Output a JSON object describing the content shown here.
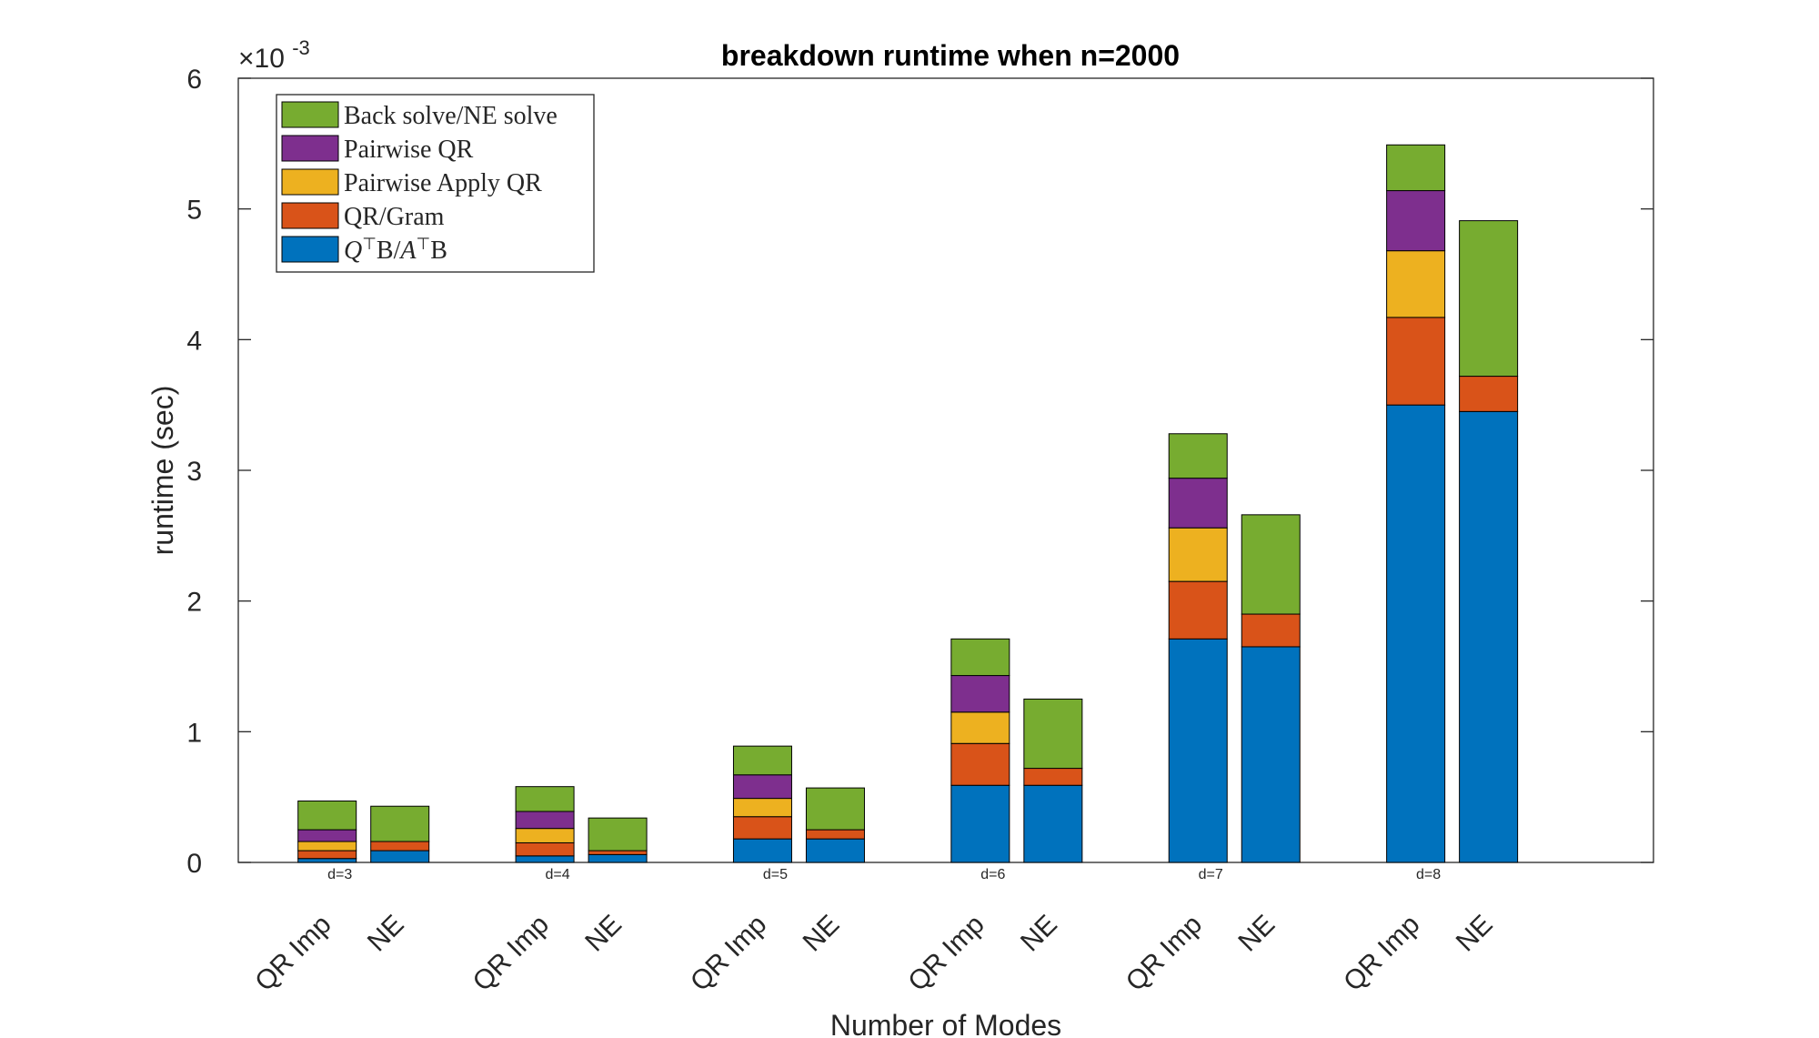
{
  "chart_data": {
    "type": "bar",
    "stacked": true,
    "title": "breakdown runtime when n=2000",
    "xlabel": "Number of Modes",
    "ylabel": "runtime (sec)",
    "y_exponent_label": "×10",
    "y_exponent_power": "-3",
    "ylim": [
      0,
      6
    ],
    "yticks": [
      "0",
      "1",
      "2",
      "3",
      "4",
      "5",
      "6"
    ],
    "grid": false,
    "legend_position": "top-left",
    "group_labels": [
      "d=3",
      "d=4",
      "d=5",
      "d=6",
      "d=7",
      "d=8"
    ],
    "bar_labels": [
      "QR Imp",
      "NE"
    ],
    "components": [
      {
        "name": "Q⊤B/A⊤B",
        "name_parts": [
          "Q",
          "⊤",
          "B/",
          "A",
          "⊤",
          "B"
        ],
        "color": "#0072BD"
      },
      {
        "name": "QR/Gram",
        "color": "#D95319"
      },
      {
        "name": "Pairwise Apply QR",
        "color": "#EDB120"
      },
      {
        "name": "Pairwise QR",
        "color": "#7E2F8E"
      },
      {
        "name": "Back solve/NE solve",
        "color": "#77AC30"
      }
    ],
    "groups": [
      {
        "label": "d=3",
        "bars": [
          {
            "label": "QR Imp",
            "values": [
              0.03,
              0.06,
              0.07,
              0.09,
              0.22
            ]
          },
          {
            "label": "NE",
            "values": [
              0.09,
              0.07,
              0.0,
              0.0,
              0.27
            ]
          }
        ]
      },
      {
        "label": "d=4",
        "bars": [
          {
            "label": "QR Imp",
            "values": [
              0.05,
              0.1,
              0.11,
              0.13,
              0.19
            ]
          },
          {
            "label": "NE",
            "values": [
              0.06,
              0.03,
              0.0,
              0.0,
              0.25
            ]
          }
        ]
      },
      {
        "label": "d=5",
        "bars": [
          {
            "label": "QR Imp",
            "values": [
              0.18,
              0.17,
              0.14,
              0.18,
              0.22
            ]
          },
          {
            "label": "NE",
            "values": [
              0.18,
              0.07,
              0.0,
              0.0,
              0.32
            ]
          }
        ]
      },
      {
        "label": "d=6",
        "bars": [
          {
            "label": "QR Imp",
            "values": [
              0.59,
              0.32,
              0.24,
              0.28,
              0.28
            ]
          },
          {
            "label": "NE",
            "values": [
              0.59,
              0.13,
              0.0,
              0.0,
              0.53
            ]
          }
        ]
      },
      {
        "label": "d=7",
        "bars": [
          {
            "label": "QR Imp",
            "values": [
              1.71,
              0.44,
              0.41,
              0.38,
              0.34
            ]
          },
          {
            "label": "NE",
            "values": [
              1.65,
              0.25,
              0.0,
              0.0,
              0.76
            ]
          }
        ]
      },
      {
        "label": "d=8",
        "bars": [
          {
            "label": "QR Imp",
            "values": [
              3.5,
              0.67,
              0.51,
              0.46,
              0.35
            ]
          },
          {
            "label": "NE",
            "values": [
              3.45,
              0.27,
              0.0,
              0.0,
              1.19
            ]
          }
        ]
      }
    ]
  }
}
